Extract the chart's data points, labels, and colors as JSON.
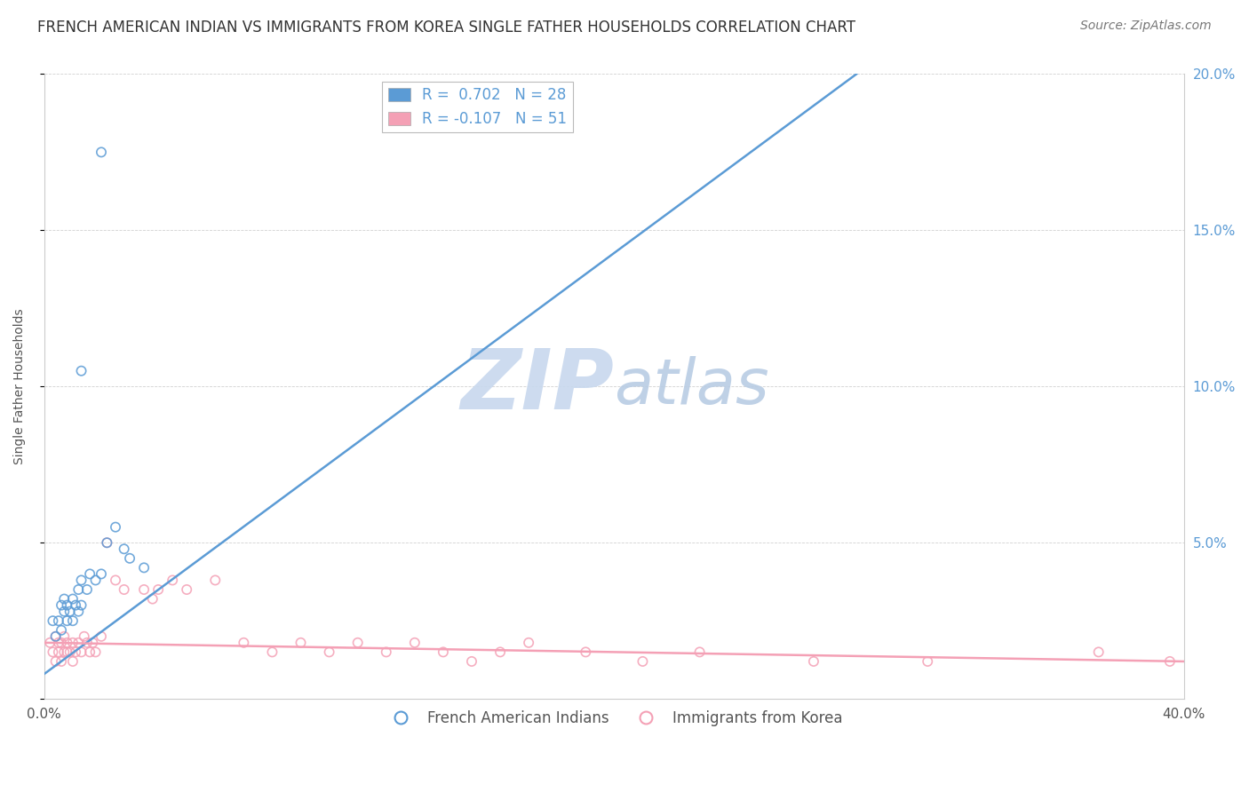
{
  "title": "FRENCH AMERICAN INDIAN VS IMMIGRANTS FROM KOREA SINGLE FATHER HOUSEHOLDS CORRELATION CHART",
  "source": "Source: ZipAtlas.com",
  "ylabel": "Single Father Households",
  "xlim": [
    0.0,
    0.4
  ],
  "ylim": [
    0.0,
    0.2
  ],
  "xticks": [
    0.0,
    0.1,
    0.2,
    0.3,
    0.4
  ],
  "xticklabels": [
    "0.0%",
    "",
    "",
    "",
    "40.0%"
  ],
  "yticks": [
    0.0,
    0.05,
    0.1,
    0.15,
    0.2
  ],
  "right_yticklabels": [
    "",
    "5.0%",
    "10.0%",
    "15.0%",
    "20.0%"
  ],
  "legend1_label": "R =  0.702   N = 28",
  "legend2_label": "R = -0.107   N = 51",
  "blue_color": "#5b9bd5",
  "pink_color": "#f4a0b5",
  "blue_scatter": [
    [
      0.003,
      0.025
    ],
    [
      0.004,
      0.02
    ],
    [
      0.005,
      0.025
    ],
    [
      0.006,
      0.022
    ],
    [
      0.006,
      0.03
    ],
    [
      0.007,
      0.028
    ],
    [
      0.007,
      0.032
    ],
    [
      0.008,
      0.025
    ],
    [
      0.008,
      0.03
    ],
    [
      0.009,
      0.028
    ],
    [
      0.01,
      0.025
    ],
    [
      0.01,
      0.032
    ],
    [
      0.011,
      0.03
    ],
    [
      0.012,
      0.028
    ],
    [
      0.012,
      0.035
    ],
    [
      0.013,
      0.03
    ],
    [
      0.013,
      0.038
    ],
    [
      0.015,
      0.035
    ],
    [
      0.016,
      0.04
    ],
    [
      0.018,
      0.038
    ],
    [
      0.02,
      0.04
    ],
    [
      0.022,
      0.05
    ],
    [
      0.013,
      0.105
    ],
    [
      0.02,
      0.175
    ],
    [
      0.025,
      0.055
    ],
    [
      0.028,
      0.048
    ],
    [
      0.03,
      0.045
    ],
    [
      0.035,
      0.042
    ]
  ],
  "pink_scatter": [
    [
      0.002,
      0.018
    ],
    [
      0.003,
      0.015
    ],
    [
      0.004,
      0.012
    ],
    [
      0.004,
      0.02
    ],
    [
      0.005,
      0.018
    ],
    [
      0.005,
      0.015
    ],
    [
      0.006,
      0.018
    ],
    [
      0.006,
      0.012
    ],
    [
      0.007,
      0.015
    ],
    [
      0.007,
      0.02
    ],
    [
      0.008,
      0.015
    ],
    [
      0.008,
      0.018
    ],
    [
      0.009,
      0.015
    ],
    [
      0.01,
      0.018
    ],
    [
      0.01,
      0.012
    ],
    [
      0.011,
      0.015
    ],
    [
      0.012,
      0.018
    ],
    [
      0.013,
      0.015
    ],
    [
      0.014,
      0.02
    ],
    [
      0.015,
      0.018
    ],
    [
      0.016,
      0.015
    ],
    [
      0.017,
      0.018
    ],
    [
      0.018,
      0.015
    ],
    [
      0.02,
      0.02
    ],
    [
      0.022,
      0.05
    ],
    [
      0.025,
      0.038
    ],
    [
      0.028,
      0.035
    ],
    [
      0.035,
      0.035
    ],
    [
      0.038,
      0.032
    ],
    [
      0.04,
      0.035
    ],
    [
      0.045,
      0.038
    ],
    [
      0.05,
      0.035
    ],
    [
      0.06,
      0.038
    ],
    [
      0.07,
      0.018
    ],
    [
      0.08,
      0.015
    ],
    [
      0.09,
      0.018
    ],
    [
      0.1,
      0.015
    ],
    [
      0.11,
      0.018
    ],
    [
      0.12,
      0.015
    ],
    [
      0.13,
      0.018
    ],
    [
      0.14,
      0.015
    ],
    [
      0.15,
      0.012
    ],
    [
      0.16,
      0.015
    ],
    [
      0.17,
      0.018
    ],
    [
      0.19,
      0.015
    ],
    [
      0.21,
      0.012
    ],
    [
      0.23,
      0.015
    ],
    [
      0.27,
      0.012
    ],
    [
      0.31,
      0.012
    ],
    [
      0.37,
      0.015
    ],
    [
      0.395,
      0.012
    ]
  ],
  "blue_line_x": [
    0.0,
    0.285
  ],
  "blue_line_y": [
    0.008,
    0.2
  ],
  "pink_line_x": [
    0.0,
    0.4
  ],
  "pink_line_y": [
    0.018,
    0.012
  ],
  "watermark_ZIP": "ZIP",
  "watermark_atlas": "atlas",
  "title_fontsize": 12,
  "axis_tick_fontsize": 11,
  "legend_fontsize": 12,
  "marker_size": 55
}
